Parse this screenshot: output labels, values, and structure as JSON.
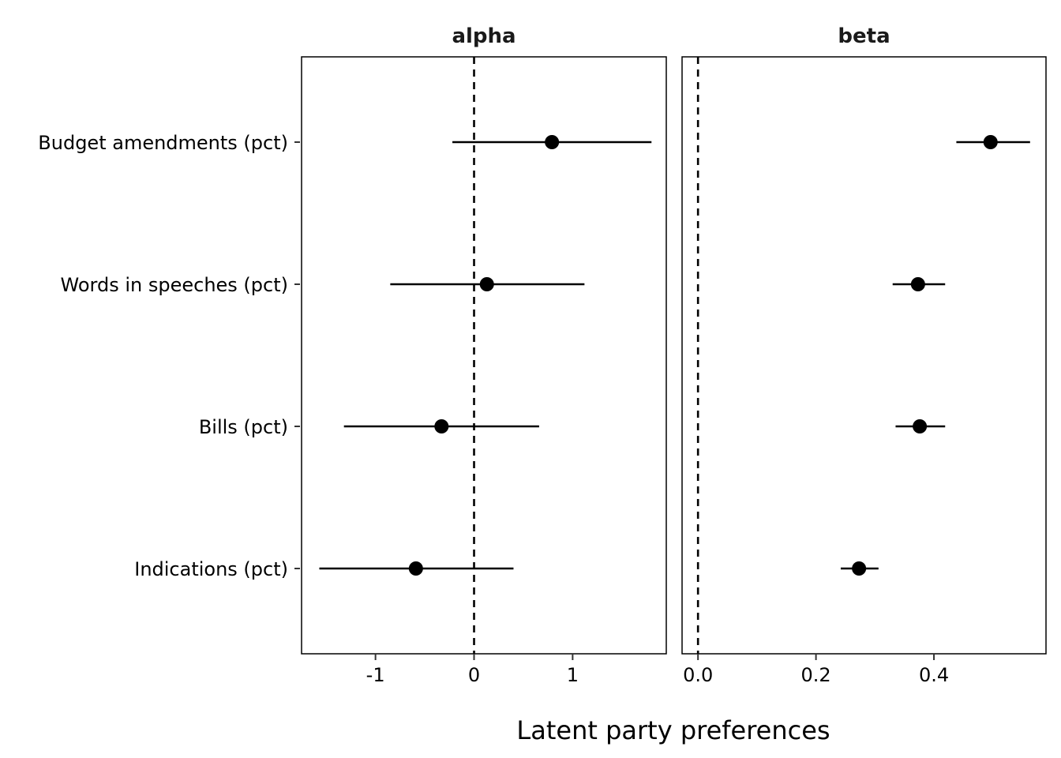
{
  "chart_data": {
    "type": "scatter",
    "title": "",
    "xlabel": "Latent party preferences",
    "ylabel": "",
    "grid": false,
    "legend": "none",
    "categories": [
      "Budget amendments (pct)",
      "Words in speeches (pct)",
      "Bills (pct)",
      "Indications (pct)"
    ],
    "reference_line": {
      "x": 0,
      "style": "dashed"
    },
    "facets": [
      {
        "name": "alpha",
        "xlim": [
          -1.75,
          1.95
        ],
        "xticks": [
          -1,
          0,
          1
        ],
        "xtick_labels": [
          "-1",
          "0",
          "1"
        ],
        "points": [
          {
            "category": "Budget amendments (pct)",
            "estimate": 0.79,
            "lower": -0.22,
            "upper": 1.8
          },
          {
            "category": "Words in speeches (pct)",
            "estimate": 0.13,
            "lower": -0.85,
            "upper": 1.12
          },
          {
            "category": "Bills (pct)",
            "estimate": -0.33,
            "lower": -1.32,
            "upper": 0.66
          },
          {
            "category": "Indications (pct)",
            "estimate": -0.59,
            "lower": -1.57,
            "upper": 0.4
          }
        ]
      },
      {
        "name": "beta",
        "xlim": [
          -0.027,
          0.59
        ],
        "xticks": [
          0,
          0.2,
          0.4
        ],
        "xtick_labels": [
          "0.0",
          "0.2",
          "0.4"
        ],
        "points": [
          {
            "category": "Budget amendments (pct)",
            "estimate": 0.496,
            "lower": 0.438,
            "upper": 0.563
          },
          {
            "category": "Words in speeches (pct)",
            "estimate": 0.373,
            "lower": 0.33,
            "upper": 0.419
          },
          {
            "category": "Bills (pct)",
            "estimate": 0.376,
            "lower": 0.335,
            "upper": 0.419
          },
          {
            "category": "Indications (pct)",
            "estimate": 0.273,
            "lower": 0.242,
            "upper": 0.306
          }
        ]
      }
    ]
  }
}
